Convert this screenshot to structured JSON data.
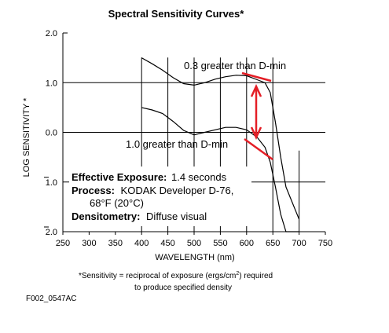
{
  "chart_data": {
    "type": "line",
    "title": "Spectral Sensitivity Curves*",
    "xlabel": "WAVELENGTH (nm)",
    "ylabel": "LOG SENSITIVITY *",
    "xlim": [
      250,
      750
    ],
    "ylim": [
      -2.0,
      2.0
    ],
    "x_ticks": [
      "250",
      "300",
      "350",
      "400",
      "450",
      "500",
      "550",
      "600",
      "650",
      "700",
      "750"
    ],
    "y_ticks": [
      "2.0",
      "1.0",
      "0.0",
      "1.0",
      "2.0"
    ],
    "y_tick_values": [
      2.0,
      1.0,
      0.0,
      -1.0,
      -2.0
    ],
    "grid": "major lines at each 50 nm and 1.0 log unit (left/top region)",
    "series": [
      {
        "name": "0.3 greater than D-min",
        "x": [
          400,
          420,
          440,
          460,
          480,
          500,
          520,
          540,
          560,
          580,
          600,
          620,
          635,
          645,
          655,
          665,
          675,
          700
        ],
        "y": [
          1.5,
          1.38,
          1.25,
          1.1,
          0.98,
          0.95,
          1.0,
          1.07,
          1.12,
          1.15,
          1.14,
          1.06,
          1.0,
          0.8,
          0.2,
          -0.5,
          -1.1,
          -1.75
        ]
      },
      {
        "name": "1.0 greater than D-min",
        "x": [
          400,
          420,
          440,
          460,
          480,
          500,
          520,
          540,
          560,
          580,
          600,
          620,
          635,
          645,
          655,
          665,
          675,
          700
        ],
        "y": [
          0.5,
          0.45,
          0.38,
          0.22,
          0.04,
          -0.05,
          0.0,
          0.05,
          0.1,
          0.1,
          0.05,
          -0.1,
          -0.3,
          -0.6,
          -1.1,
          -1.65,
          -2.0,
          -2.0
        ]
      }
    ],
    "annotations": {
      "upper_label": "0.3 greater than D-min",
      "lower_label": "1.0 greater than D-min",
      "exposure_label": "Effective Exposure:",
      "exposure_value": "1.4 seconds",
      "process_label": "Process:",
      "process_value_1": "KODAK Developer D-76,",
      "process_value_2": "68°F (20°C)",
      "densitometry_label": "Densitometry:",
      "densitometry_value": "Diffuse visual"
    },
    "footnote_1a": "*Sensitivity = reciprocal of exposure (ergs/cm",
    "footnote_1sup": "2",
    "footnote_1b": ") required",
    "footnote_2": "to produce specified density",
    "figure_id": "F002_0547AC",
    "marker_color": "#e41e26"
  }
}
